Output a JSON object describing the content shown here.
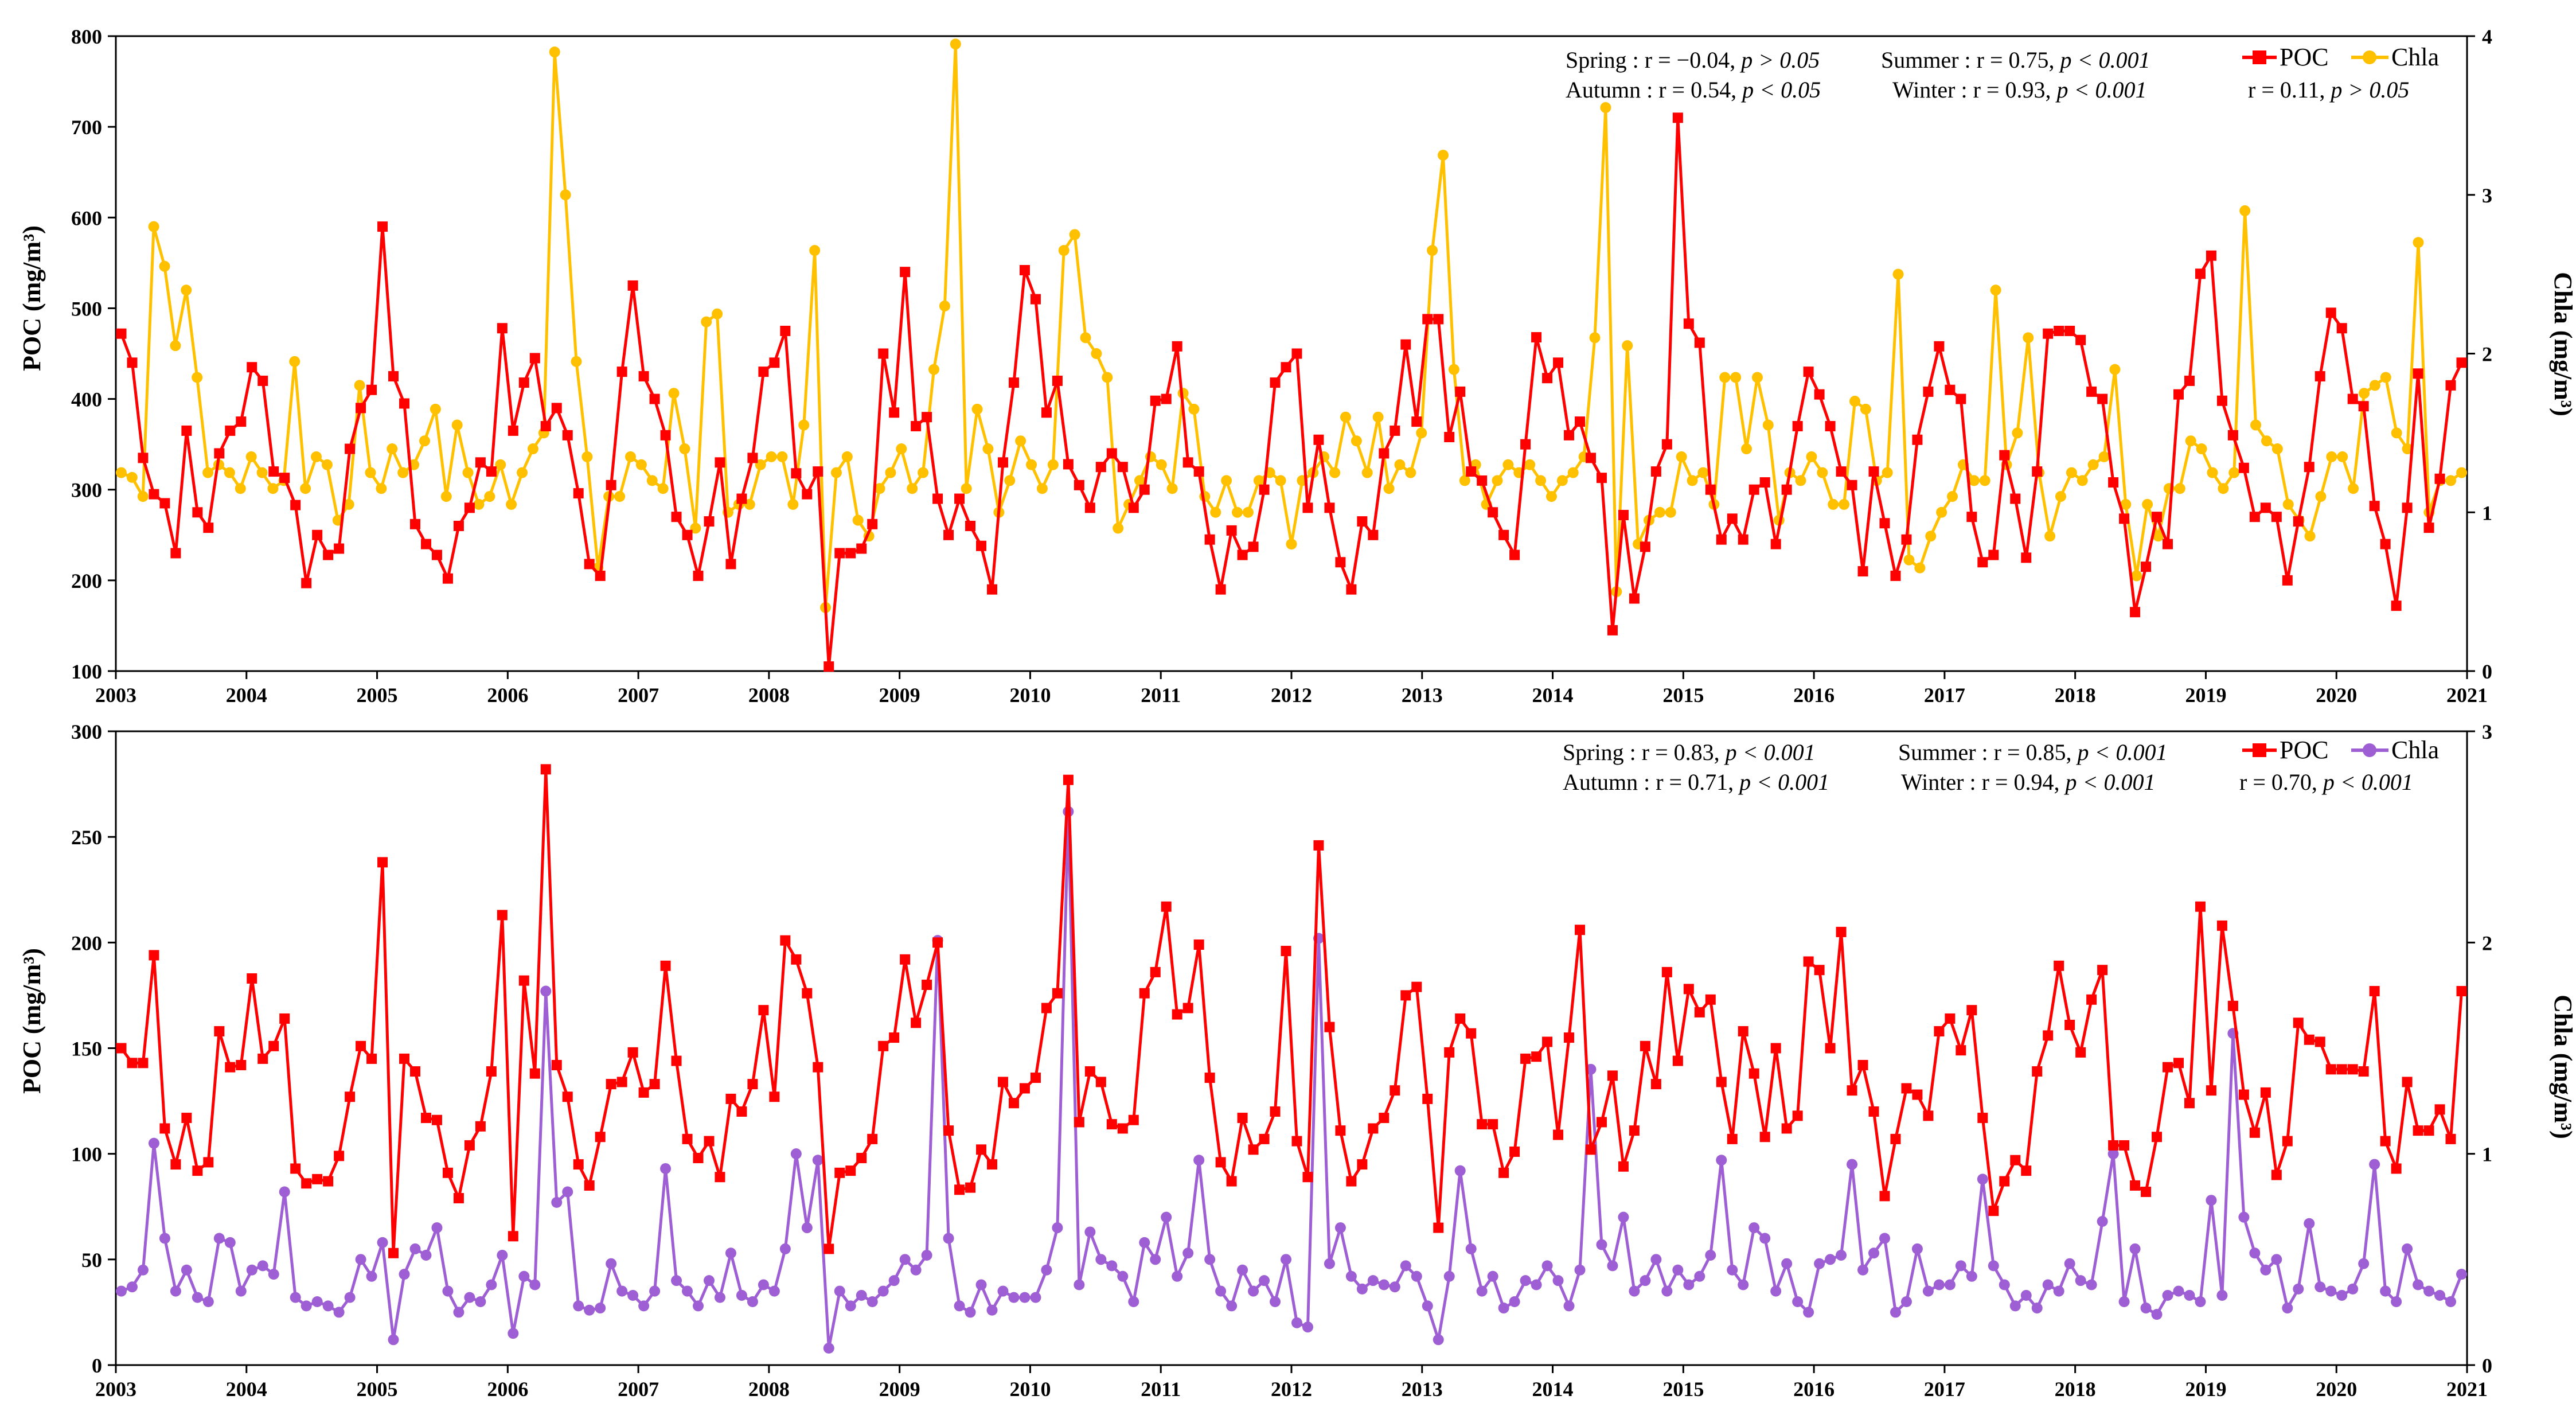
{
  "chart_data": [
    {
      "type": "line",
      "panel": "top",
      "xlabel": "",
      "ylabel": "POC (mg/m³)",
      "y2label": "Chla (mg/m³)",
      "ylim": [
        100,
        800
      ],
      "y2lim": [
        0,
        4
      ],
      "xlim": [
        2003,
        2021
      ],
      "x_ticks": [
        "2003",
        "2004",
        "2005",
        "2006",
        "2007",
        "2008",
        "2009",
        "2010",
        "2011",
        "2012",
        "2013",
        "2014",
        "2015",
        "2016",
        "2017",
        "2018",
        "2019",
        "2020",
        "2021"
      ],
      "y_ticks": [
        "100",
        "200",
        "300",
        "400",
        "500",
        "600",
        "700",
        "800"
      ],
      "y2_ticks": [
        "0",
        "1",
        "2",
        "3",
        "4"
      ],
      "legend": [
        "POC",
        "Chla"
      ],
      "stats": {
        "spring": {
          "label": "Spring : r = −0.04, ",
          "p": "p > 0.05"
        },
        "summer": {
          "label": "Summer : r = 0.75, ",
          "p": "p < 0.001"
        },
        "autumn": {
          "label": "Autumn : r = 0.54, ",
          "p": "p < 0.05"
        },
        "winter": {
          "label": "Winter : r = 0.93, ",
          "p": "p < 0.001"
        },
        "overall": {
          "label": "r = 0.11, ",
          "p": "p > 0.05"
        }
      },
      "series": [
        {
          "name": "POC",
          "axis": "left",
          "color": "#ff0000",
          "marker": "square",
          "values": [
            472,
            440,
            335,
            295,
            285,
            230,
            365,
            275,
            258,
            340,
            365,
            375,
            435,
            420,
            320,
            313,
            283,
            197,
            250,
            228,
            235,
            345,
            390,
            410,
            590,
            425,
            395,
            262,
            240,
            228,
            202,
            260,
            280,
            330,
            320,
            478,
            365,
            418,
            445,
            370,
            390,
            360,
            296,
            218,
            205,
            305,
            430,
            525,
            425,
            400,
            360,
            270,
            250,
            205,
            265,
            330,
            218,
            290,
            335,
            430,
            440,
            475,
            318,
            295,
            320,
            105,
            230,
            230,
            235,
            262,
            450,
            385,
            540,
            370,
            380,
            290,
            250,
            290,
            260,
            238,
            190,
            330,
            418,
            542,
            510,
            385,
            420,
            328,
            305,
            280,
            325,
            340,
            325,
            280,
            300,
            398,
            400,
            458,
            330,
            320,
            245,
            190,
            255,
            228,
            237,
            300,
            418,
            435,
            450,
            280,
            355,
            280,
            220,
            190,
            265,
            250,
            340,
            365,
            460,
            375,
            488,
            488,
            358,
            408,
            320,
            310,
            275,
            250,
            228,
            350,
            468,
            423,
            440,
            360,
            375,
            335,
            313,
            145,
            272,
            180,
            237,
            320,
            350,
            710,
            483,
            462,
            300,
            245,
            268,
            245,
            300,
            308,
            240,
            300,
            370,
            430,
            405,
            370,
            320,
            305,
            210,
            320,
            263,
            205,
            245,
            355,
            408,
            458,
            410,
            400,
            270,
            220,
            228,
            338,
            290,
            225,
            320,
            472,
            475,
            475,
            465,
            408,
            400,
            308,
            268,
            165,
            215,
            270,
            240,
            405,
            420,
            538,
            558,
            398,
            360,
            324,
            270,
            280,
            270,
            200,
            265,
            325,
            425,
            495,
            478,
            400,
            392,
            282,
            240,
            172,
            280,
            428,
            258,
            312,
            415,
            440
          ]
        },
        {
          "name": "Chla",
          "axis": "right",
          "color": "#ffc000",
          "marker": "circle",
          "values": [
            1.25,
            1.22,
            1.1,
            2.8,
            2.55,
            2.05,
            2.4,
            1.85,
            1.25,
            1.3,
            1.25,
            1.15,
            1.35,
            1.25,
            1.15,
            1.2,
            1.95,
            1.15,
            1.35,
            1.3,
            0.95,
            1.05,
            1.8,
            1.25,
            1.15,
            1.4,
            1.25,
            1.3,
            1.45,
            1.65,
            1.1,
            1.55,
            1.25,
            1.05,
            1.1,
            1.3,
            1.05,
            1.25,
            1.4,
            1.5,
            3.9,
            3.0,
            1.95,
            1.35,
            0.65,
            1.1,
            1.1,
            1.35,
            1.3,
            1.2,
            1.15,
            1.75,
            1.4,
            0.9,
            2.2,
            2.25,
            1.0,
            1.05,
            1.05,
            1.3,
            1.35,
            1.35,
            1.05,
            1.55,
            2.65,
            0.4,
            1.25,
            1.35,
            0.95,
            0.85,
            1.15,
            1.25,
            1.4,
            1.15,
            1.25,
            1.9,
            2.3,
            3.95,
            1.15,
            1.65,
            1.4,
            1.0,
            1.2,
            1.45,
            1.3,
            1.15,
            1.3,
            2.65,
            2.75,
            2.1,
            2.0,
            1.85,
            0.9,
            1.05,
            1.2,
            1.35,
            1.3,
            1.15,
            1.75,
            1.65,
            1.1,
            1.0,
            1.2,
            1.0,
            1.0,
            1.2,
            1.25,
            1.2,
            0.8,
            1.2,
            1.25,
            1.35,
            1.25,
            1.6,
            1.45,
            1.25,
            1.6,
            1.15,
            1.3,
            1.25,
            1.5,
            2.65,
            3.25,
            1.9,
            1.2,
            1.3,
            1.05,
            1.2,
            1.3,
            1.25,
            1.3,
            1.2,
            1.1,
            1.2,
            1.25,
            1.35,
            2.1,
            3.55,
            0.5,
            2.05,
            0.8,
            0.95,
            1.0,
            1.0,
            1.35,
            1.2,
            1.25,
            1.05,
            1.85,
            1.85,
            1.4,
            1.85,
            1.55,
            0.95,
            1.25,
            1.2,
            1.35,
            1.25,
            1.05,
            1.05,
            1.7,
            1.65,
            1.2,
            1.25,
            2.5,
            0.7,
            0.65,
            0.85,
            1.0,
            1.1,
            1.3,
            1.2,
            1.2,
            2.4,
            1.3,
            1.5,
            2.1,
            1.25,
            0.85,
            1.1,
            1.25,
            1.2,
            1.3,
            1.35,
            1.9,
            1.05,
            0.6,
            1.05,
            0.85,
            1.15,
            1.15,
            1.45,
            1.4,
            1.25,
            1.15,
            1.25,
            2.9,
            1.55,
            1.45,
            1.4,
            1.05,
            0.95,
            0.85,
            1.1,
            1.35,
            1.35,
            1.15,
            1.75,
            1.8,
            1.85,
            1.5,
            1.4,
            2.7,
            1.0,
            1.2,
            1.2,
            1.25
          ]
        }
      ]
    },
    {
      "type": "line",
      "panel": "bottom",
      "xlabel": "",
      "ylabel": "POC (mg/m³)",
      "y2label": "Chla (mg/m³)",
      "ylim": [
        0,
        300
      ],
      "y2lim": [
        0,
        3
      ],
      "xlim": [
        2003,
        2021
      ],
      "x_ticks": [
        "2003",
        "2004",
        "2005",
        "2006",
        "2007",
        "2008",
        "2009",
        "2010",
        "2011",
        "2012",
        "2013",
        "2014",
        "2015",
        "2016",
        "2017",
        "2018",
        "2019",
        "2020",
        "2021"
      ],
      "y_ticks": [
        "0",
        "50",
        "100",
        "150",
        "200",
        "250",
        "300"
      ],
      "y2_ticks": [
        "0",
        "1",
        "2",
        "3"
      ],
      "legend": [
        "POC",
        "Chla"
      ],
      "stats": {
        "spring": {
          "label": "Spring : r = 0.83, ",
          "p": "p < 0.001"
        },
        "summer": {
          "label": "Summer : r = 0.85, ",
          "p": "p < 0.001"
        },
        "autumn": {
          "label": "Autumn : r = 0.71, ",
          "p": "p < 0.001"
        },
        "winter": {
          "label": "Winter : r = 0.94, ",
          "p": "p < 0.001"
        },
        "overall": {
          "label": "r = 0.70, ",
          "p": "p < 0.001"
        }
      },
      "series": [
        {
          "name": "POC",
          "axis": "left",
          "color": "#ff0000",
          "marker": "square",
          "values": [
            150,
            143,
            143,
            194,
            112,
            95,
            117,
            92,
            96,
            158,
            141,
            142,
            183,
            145,
            151,
            164,
            93,
            86,
            88,
            87,
            99,
            127,
            151,
            145,
            238,
            53,
            145,
            139,
            117,
            116,
            91,
            79,
            104,
            113,
            139,
            213,
            61,
            182,
            138,
            282,
            142,
            127,
            95,
            85,
            108,
            133,
            134,
            148,
            129,
            133,
            189,
            144,
            107,
            98,
            106,
            89,
            126,
            120,
            133,
            168,
            127,
            201,
            192,
            176,
            141,
            55,
            91,
            92,
            98,
            107,
            151,
            155,
            192,
            162,
            180,
            200,
            111,
            83,
            84,
            102,
            95,
            134,
            124,
            131,
            136,
            169,
            176,
            277,
            115,
            139,
            134,
            114,
            112,
            116,
            176,
            186,
            217,
            166,
            169,
            199,
            136,
            96,
            87,
            117,
            102,
            107,
            120,
            196,
            106,
            89,
            246,
            160,
            111,
            87,
            95,
            112,
            117,
            130,
            175,
            179,
            126,
            65,
            148,
            164,
            157,
            114,
            114,
            91,
            101,
            145,
            146,
            153,
            109,
            155,
            206,
            102,
            115,
            137,
            94,
            111,
            151,
            133,
            186,
            144,
            178,
            167,
            173,
            134,
            107,
            158,
            138,
            108,
            150,
            112,
            118,
            191,
            187,
            150,
            205,
            130,
            142,
            120,
            80,
            107,
            131,
            128,
            118,
            158,
            164,
            149,
            168,
            117,
            73,
            87,
            97,
            92,
            139,
            156,
            189,
            161,
            148,
            173,
            187,
            104,
            104,
            85,
            82,
            108,
            141,
            143,
            124,
            217,
            130,
            208,
            170,
            128,
            110,
            129,
            90,
            106,
            162,
            154,
            153,
            140,
            140,
            140,
            139,
            177,
            106,
            93,
            134,
            111,
            111,
            121,
            107,
            177
          ]
        },
        {
          "name": "Chla",
          "axis": "right",
          "color": "#9e5fd4",
          "marker": "circle",
          "values": [
            0.35,
            0.37,
            0.45,
            1.05,
            0.6,
            0.35,
            0.45,
            0.32,
            0.3,
            0.6,
            0.58,
            0.35,
            0.45,
            0.47,
            0.43,
            0.82,
            0.32,
            0.28,
            0.3,
            0.28,
            0.25,
            0.32,
            0.5,
            0.42,
            0.58,
            0.12,
            0.43,
            0.55,
            0.52,
            0.65,
            0.35,
            0.25,
            0.32,
            0.3,
            0.38,
            0.52,
            0.15,
            0.42,
            0.38,
            1.77,
            0.77,
            0.82,
            0.28,
            0.26,
            0.27,
            0.48,
            0.35,
            0.33,
            0.28,
            0.35,
            0.93,
            0.4,
            0.35,
            0.28,
            0.4,
            0.32,
            0.53,
            0.33,
            0.3,
            0.38,
            0.35,
            0.55,
            1.0,
            0.65,
            0.97,
            0.08,
            0.35,
            0.28,
            0.33,
            0.3,
            0.35,
            0.4,
            0.5,
            0.45,
            0.52,
            2.01,
            0.6,
            0.28,
            0.25,
            0.38,
            0.26,
            0.35,
            0.32,
            0.32,
            0.32,
            0.45,
            0.65,
            2.62,
            0.38,
            0.63,
            0.5,
            0.47,
            0.42,
            0.3,
            0.58,
            0.5,
            0.7,
            0.42,
            0.53,
            0.97,
            0.5,
            0.35,
            0.28,
            0.45,
            0.35,
            0.4,
            0.3,
            0.5,
            0.2,
            0.18,
            2.02,
            0.48,
            0.65,
            0.42,
            0.36,
            0.4,
            0.38,
            0.37,
            0.47,
            0.42,
            0.28,
            0.12,
            0.42,
            0.92,
            0.55,
            0.35,
            0.42,
            0.27,
            0.3,
            0.4,
            0.38,
            0.47,
            0.4,
            0.28,
            0.45,
            1.4,
            0.57,
            0.47,
            0.7,
            0.35,
            0.4,
            0.5,
            0.35,
            0.45,
            0.38,
            0.42,
            0.52,
            0.97,
            0.45,
            0.38,
            0.65,
            0.6,
            0.35,
            0.48,
            0.3,
            0.25,
            0.48,
            0.5,
            0.52,
            0.95,
            0.45,
            0.53,
            0.6,
            0.25,
            0.3,
            0.55,
            0.35,
            0.38,
            0.38,
            0.47,
            0.42,
            0.88,
            0.47,
            0.38,
            0.28,
            0.33,
            0.27,
            0.38,
            0.35,
            0.48,
            0.4,
            0.38,
            0.68,
            1.0,
            0.3,
            0.55,
            0.27,
            0.24,
            0.33,
            0.35,
            0.33,
            0.3,
            0.78,
            0.33,
            1.57,
            0.7,
            0.53,
            0.45,
            0.5,
            0.27,
            0.36,
            0.67,
            0.37,
            0.35,
            0.33,
            0.36,
            0.48,
            0.95,
            0.35,
            0.3,
            0.55,
            0.38,
            0.35,
            0.33,
            0.3,
            0.43
          ]
        }
      ]
    }
  ]
}
